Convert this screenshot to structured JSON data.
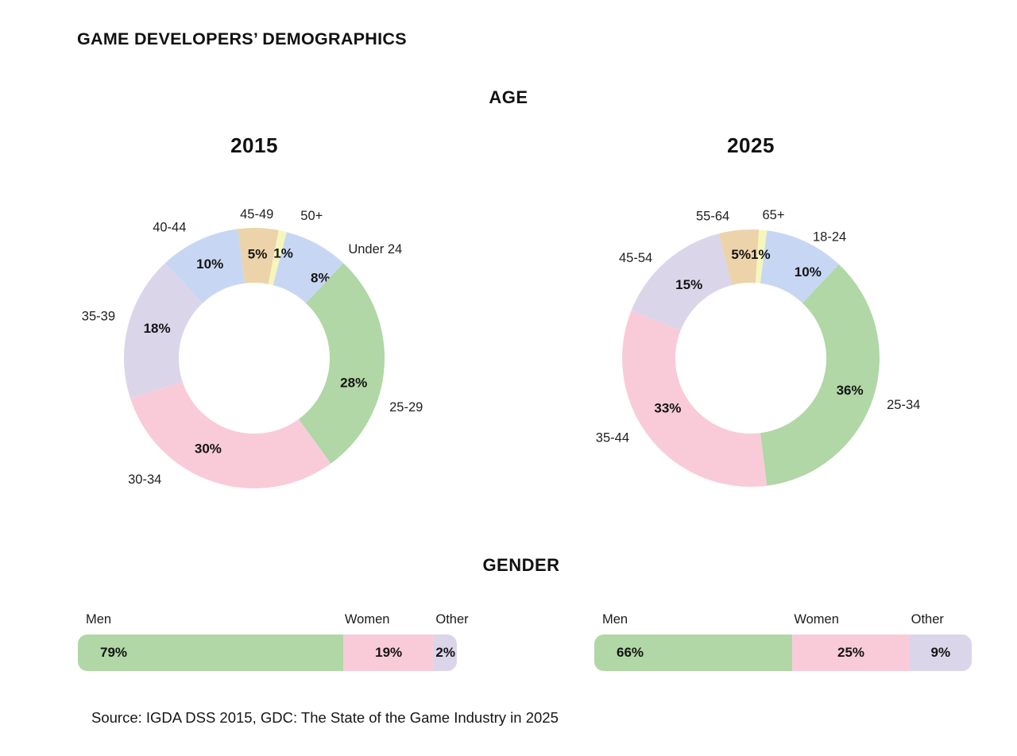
{
  "page": {
    "title": "GAME DEVELOPERS’ DEMOGRAPHICS",
    "source": "Source: IGDA DSS 2015, GDC: The State of the Game Industry in 2025"
  },
  "sections": {
    "age": {
      "heading": "AGE"
    },
    "gender": {
      "heading": "GENDER"
    }
  },
  "palette": {
    "green": "#b0d7a5",
    "pink": "#f9cbd9",
    "lavender": "#dbd5ea",
    "blue": "#c7d7f3",
    "tan": "#ecd3aa",
    "yellow": "#f5f6bb",
    "text": "#141414"
  },
  "chart_data": [
    {
      "type": "pie",
      "subtype": "donut",
      "title": "2015",
      "section": "AGE",
      "legend_position": "none",
      "start_angle_deg": 14.4,
      "outer_radius": 164,
      "inner_radius": 95,
      "slices": [
        {
          "label": "Under 24",
          "value": 8,
          "color": "#c7d7f3",
          "label_angle_deg": 48,
          "label_radius": 205,
          "pct_angle_deg": 39.5,
          "pct_radius": 131
        },
        {
          "label": "25-29",
          "value": 28,
          "color": "#b0d7a5",
          "label_angle_deg": 108,
          "label_radius": 201,
          "pct_angle_deg": 104,
          "pct_radius": 129
        },
        {
          "label": "30-34",
          "value": 30,
          "color": "#f9cbd9",
          "label_angle_deg": 222,
          "label_radius": 206,
          "pct_angle_deg": 207,
          "pct_radius": 128
        },
        {
          "label": "35-39",
          "value": 18,
          "color": "#dbd5ea",
          "label_angle_deg": 285,
          "label_radius": 203,
          "pct_angle_deg": 287,
          "pct_radius": 128
        },
        {
          "label": "40-44",
          "value": 10,
          "color": "#c7d7f3",
          "label_angle_deg": 327,
          "label_radius": 196
        },
        {
          "label": "45-49",
          "value": 5,
          "color": "#ecd3aa",
          "label_angle_deg": 1,
          "label_radius": 181
        },
        {
          "label": "50+",
          "value": 1,
          "color": "#f5f6bb",
          "label_angle_deg": 22,
          "label_radius": 193,
          "pct_angle_deg": 15.5,
          "pct_radius": 137
        }
      ]
    },
    {
      "type": "pie",
      "subtype": "donut",
      "title": "2025",
      "section": "AGE",
      "legend_position": "none",
      "start_angle_deg": 7.2,
      "outer_radius": 162,
      "inner_radius": 95,
      "slices": [
        {
          "label": "18-24",
          "value": 10,
          "color": "#c7d7f3",
          "label_angle_deg": 33,
          "label_radius": 182,
          "pct_angle_deg": 33.5,
          "pct_radius": 130
        },
        {
          "label": "25-34",
          "value": 36,
          "color": "#b0d7a5",
          "label_angle_deg": 107,
          "label_radius": 201
        },
        {
          "label": "35-44",
          "value": 33,
          "color": "#f9cbd9",
          "label_angle_deg": 240,
          "label_radius": 201,
          "pct_angle_deg": 239,
          "pct_radius": 122
        },
        {
          "label": "45-54",
          "value": 15,
          "color": "#dbd5ea",
          "label_angle_deg": 311,
          "label_radius": 192,
          "pct_angle_deg": 320,
          "pct_radius": 121
        },
        {
          "label": "55-64",
          "value": 5,
          "color": "#ecd3aa",
          "label_angle_deg": 345,
          "label_radius": 185
        },
        {
          "label": "65+",
          "value": 1,
          "color": "#f5f6bb",
          "label_angle_deg": 9,
          "label_radius": 182
        }
      ]
    },
    {
      "type": "bar",
      "subtype": "stacked-horizontal",
      "name": "gender-left-bar",
      "section": "GENDER",
      "categories": [
        "Men",
        "Women",
        "Other"
      ],
      "values": [
        79,
        19,
        2
      ],
      "display_pct": [
        70,
        24,
        6
      ],
      "colors": [
        "#b0d7a5",
        "#f9cbd9",
        "#dbd5ea"
      ]
    },
    {
      "type": "bar",
      "subtype": "stacked-horizontal",
      "name": "gender-right-bar",
      "section": "GENDER",
      "categories": [
        "Men",
        "Women",
        "Other"
      ],
      "values": [
        66,
        25,
        9
      ],
      "display_pct": [
        52.5,
        31,
        16.5
      ],
      "colors": [
        "#b0d7a5",
        "#f9cbd9",
        "#dbd5ea"
      ]
    }
  ]
}
